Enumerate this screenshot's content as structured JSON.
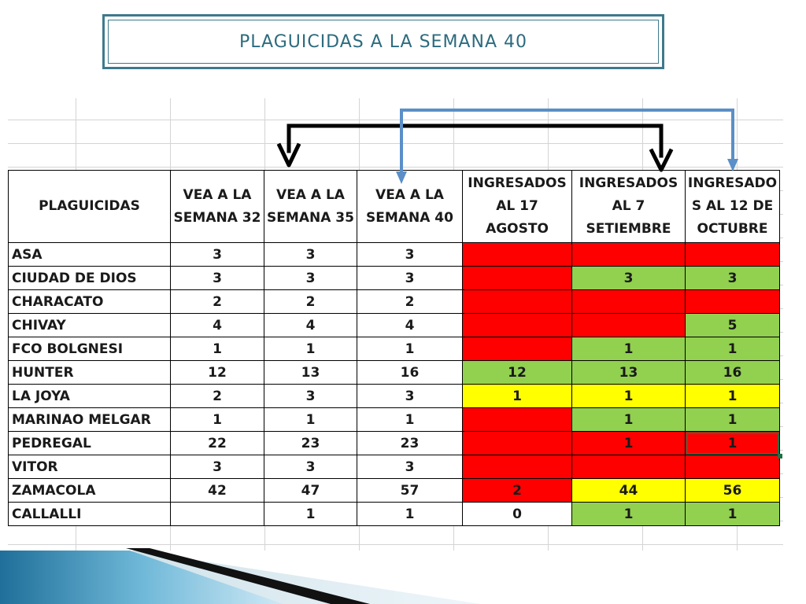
{
  "slide": {
    "title": "PLAGUICIDAS A LA SEMANA 40"
  },
  "table": {
    "headers": [
      [
        "PLAGUICIDAS"
      ],
      [
        "VEA A LA",
        "SEMANA 32"
      ],
      [
        "VEA A LA",
        "SEMANA 35"
      ],
      [
        "VEA A LA",
        "SEMANA 40"
      ],
      [
        "INGRESADOS",
        "AL 17 AGOSTO"
      ],
      [
        "INGRESADOS",
        "AL 7",
        "SETIEMBRE"
      ],
      [
        "INGRESADO",
        "S AL 12 DE",
        "OCTUBRE"
      ]
    ],
    "rows": [
      {
        "name": "ASA",
        "w32": "3",
        "w35": "3",
        "w40": "3",
        "ago": {
          "v": "",
          "c": "red"
        },
        "set": {
          "v": "",
          "c": "red"
        },
        "oct": {
          "v": "",
          "c": "red"
        }
      },
      {
        "name": "CIUDAD DE DIOS",
        "w32": "3",
        "w35": "3",
        "w40": "3",
        "ago": {
          "v": "",
          "c": "red"
        },
        "set": {
          "v": "3",
          "c": "green"
        },
        "oct": {
          "v": "3",
          "c": "green"
        }
      },
      {
        "name": "CHARACATO",
        "w32": "2",
        "w35": "2",
        "w40": "2",
        "ago": {
          "v": "",
          "c": "red"
        },
        "set": {
          "v": "",
          "c": "red"
        },
        "oct": {
          "v": "",
          "c": "red"
        }
      },
      {
        "name": "CHIVAY",
        "w32": "4",
        "w35": "4",
        "w40": "4",
        "ago": {
          "v": "",
          "c": "red"
        },
        "set": {
          "v": "",
          "c": "red"
        },
        "oct": {
          "v": "5",
          "c": "green"
        }
      },
      {
        "name": "FCO BOLGNESI",
        "w32": "1",
        "w35": "1",
        "w40": "1",
        "ago": {
          "v": "",
          "c": "red"
        },
        "set": {
          "v": "1",
          "c": "green"
        },
        "oct": {
          "v": "1",
          "c": "green"
        }
      },
      {
        "name": "HUNTER",
        "w32": "12",
        "w35": "13",
        "w40": "16",
        "ago": {
          "v": "12",
          "c": "green"
        },
        "set": {
          "v": "13",
          "c": "green"
        },
        "oct": {
          "v": "16",
          "c": "green"
        }
      },
      {
        "name": "LA JOYA",
        "w32": "2",
        "w35": "3",
        "w40": "3",
        "ago": {
          "v": "1",
          "c": "yellow"
        },
        "set": {
          "v": "1",
          "c": "yellow"
        },
        "oct": {
          "v": "1",
          "c": "yellow"
        }
      },
      {
        "name": "MARINAO MELGAR",
        "w32": "1",
        "w35": "1",
        "w40": "1",
        "ago": {
          "v": "",
          "c": "red"
        },
        "set": {
          "v": "1",
          "c": "green"
        },
        "oct": {
          "v": "1",
          "c": "green"
        }
      },
      {
        "name": "PEDREGAL",
        "w32": "22",
        "w35": "23",
        "w40": "23",
        "ago": {
          "v": "",
          "c": "red"
        },
        "set": {
          "v": "1",
          "c": "red"
        },
        "oct": {
          "v": "1",
          "c": "red"
        }
      },
      {
        "name": "VITOR",
        "w32": "3",
        "w35": "3",
        "w40": "3",
        "ago": {
          "v": "",
          "c": "red"
        },
        "set": {
          "v": "",
          "c": "red"
        },
        "oct": {
          "v": "",
          "c": "red"
        }
      },
      {
        "name": "ZAMACOLA",
        "w32": "42",
        "w35": "47",
        "w40": "57",
        "ago": {
          "v": "2",
          "c": "red"
        },
        "set": {
          "v": "44",
          "c": "yellow"
        },
        "oct": {
          "v": "56",
          "c": "yellow"
        }
      },
      {
        "name": "CALLALLI",
        "w32": "",
        "w35": "1",
        "w40": "1",
        "ago": {
          "v": "0",
          "c": "white"
        },
        "set": {
          "v": "1",
          "c": "green"
        },
        "oct": {
          "v": "1",
          "c": "green"
        }
      }
    ]
  },
  "colors": {
    "red": "#ff0000",
    "green": "#92d050",
    "yellow": "#ffff00",
    "title_border": "#3d7a8c",
    "arrow_black": "#000000",
    "arrow_blue": "#5a8fc8"
  }
}
